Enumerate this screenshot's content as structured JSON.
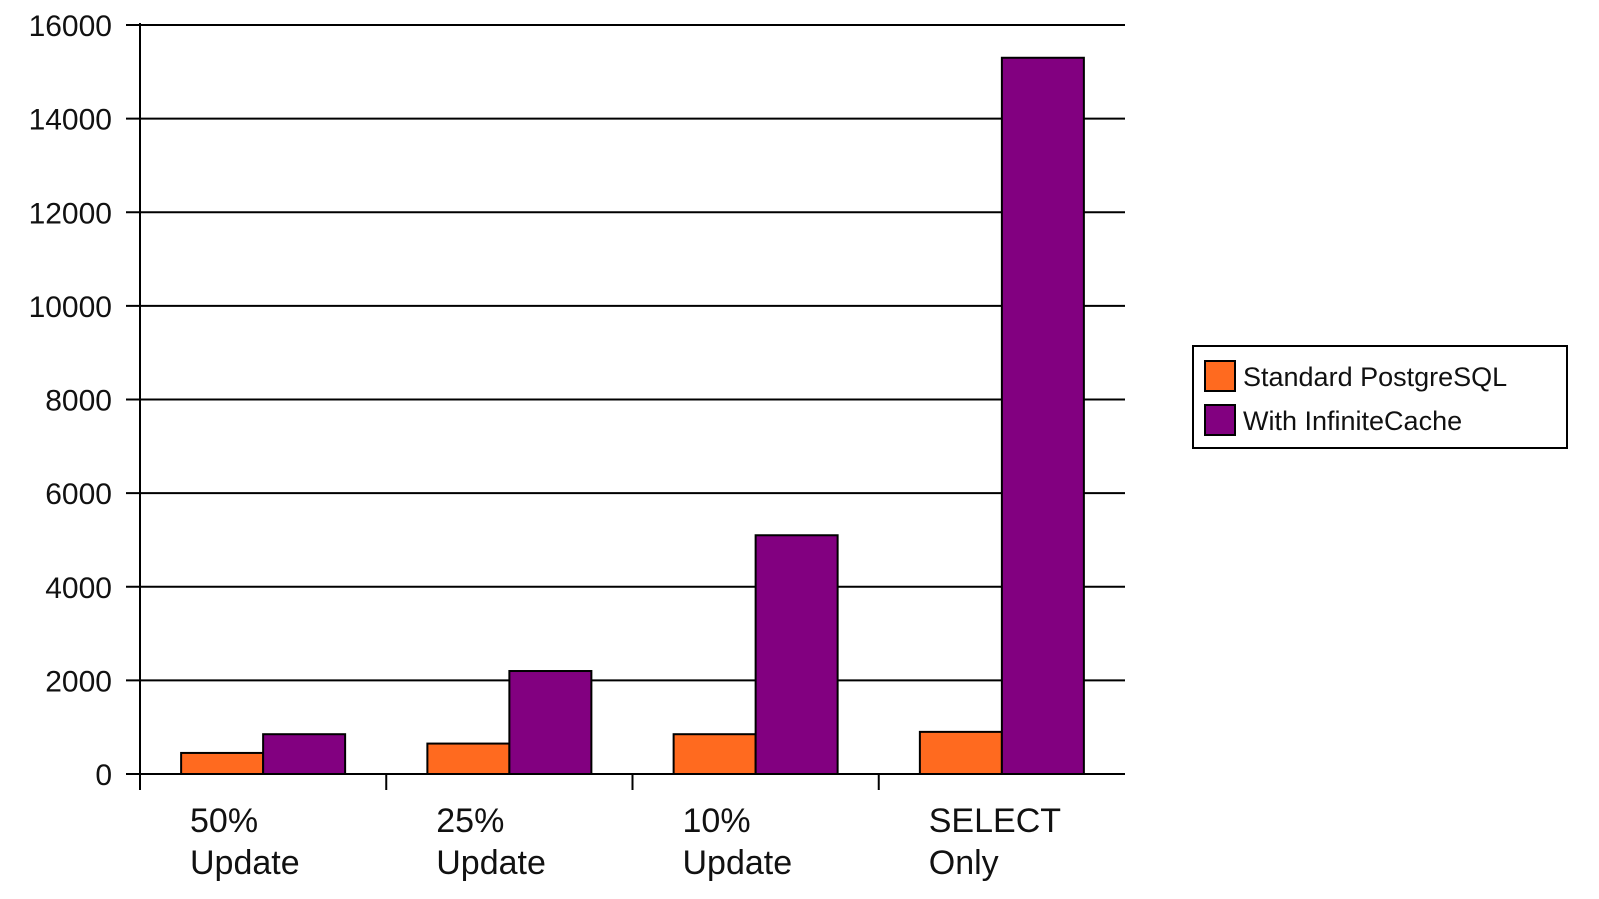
{
  "chart_data": {
    "type": "bar",
    "categories": [
      [
        "50%",
        "Update"
      ],
      [
        "25%",
        "Update"
      ],
      [
        "10%",
        "Update"
      ],
      [
        "SELECT",
        "Only"
      ]
    ],
    "series": [
      {
        "name": "Standard PostgreSQL",
        "color": "#ff6a1f",
        "values": [
          450,
          650,
          850,
          900
        ]
      },
      {
        "name": "With InfiniteCache",
        "color": "#820080",
        "values": [
          850,
          2200,
          5100,
          15300
        ]
      }
    ],
    "ylim": [
      0,
      16000
    ],
    "yticks": [
      0,
      2000,
      4000,
      6000,
      8000,
      10000,
      12000,
      14000,
      16000
    ],
    "grid": true,
    "legend": "right",
    "title": "",
    "xlabel": "",
    "ylabel": ""
  }
}
